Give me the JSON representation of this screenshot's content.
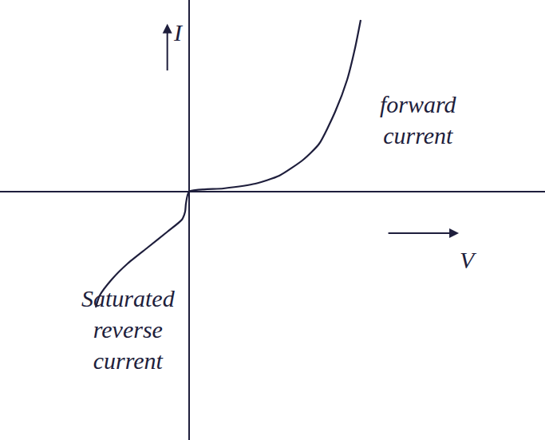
{
  "chart_data": {
    "type": "line",
    "x_label": "V",
    "y_label": "I",
    "annotations": [
      {
        "text": "forward current"
      },
      {
        "text": "Saturated reverse current"
      }
    ],
    "x": [
      -1.17,
      -1.12,
      -0.97,
      -0.77,
      -0.52,
      -0.27,
      -0.09,
      -0.05,
      -0.04,
      0,
      0.43,
      0.83,
      1.13,
      1.43,
      1.63,
      1.83,
      1.98,
      2.08,
      2.15
    ],
    "values": [
      -1.45,
      -1.3,
      -1.1,
      -0.9,
      -0.7,
      -0.5,
      -0.35,
      -0.25,
      -0.15,
      0,
      0.04,
      0.1,
      0.2,
      0.4,
      0.6,
      1.0,
      1.4,
      1.8,
      2.15
    ],
    "color": "#1e1e3c",
    "xlim": [
      -2.37,
      4.46
    ],
    "ylim": [
      -3.11,
      2.4
    ],
    "tick_labels": false,
    "grid": false
  }
}
